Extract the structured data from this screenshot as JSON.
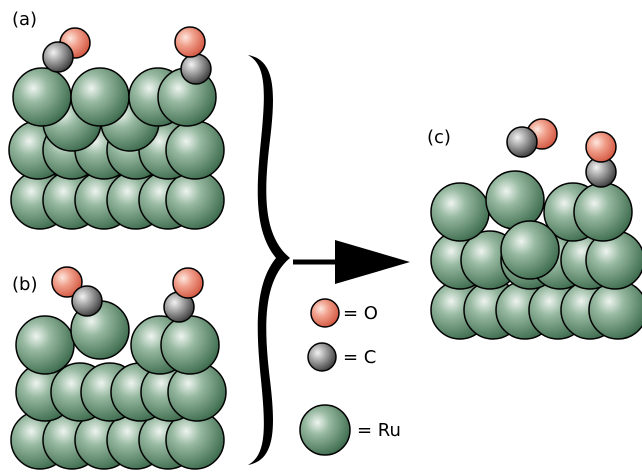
{
  "panels": {
    "a": "(a)",
    "b": "(b)",
    "c": "(c)"
  },
  "legend": {
    "oxygen": "= O",
    "carbon": "= C",
    "ruthenium": "= Ru"
  }
}
